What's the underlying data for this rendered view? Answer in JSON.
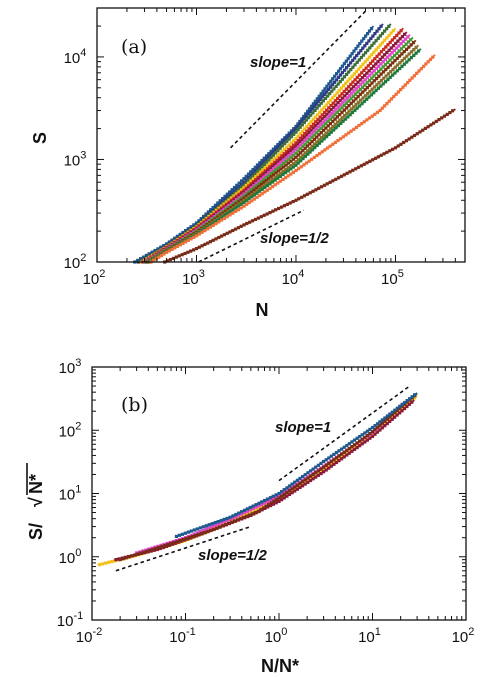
{
  "chart_data": [
    {
      "type": "line",
      "panel_label": "(a)",
      "xlabel": "N",
      "ylabel": "S",
      "x_scale": "log",
      "y_scale": "log",
      "xlim": [
        100,
        500000
      ],
      "ylim": [
        100,
        30000
      ],
      "x_ticks": [
        {
          "value": 100,
          "base": "10",
          "exp": "2"
        },
        {
          "value": 1000,
          "base": "10",
          "exp": "3"
        },
        {
          "value": 10000,
          "base": "10",
          "exp": "4"
        },
        {
          "value": 100000,
          "base": "10",
          "exp": "5"
        }
      ],
      "y_ticks": [
        {
          "value": 100,
          "base": "10",
          "exp": "2"
        },
        {
          "value": 1000,
          "base": "10",
          "exp": "3"
        },
        {
          "value": 10000,
          "base": "10",
          "exp": "4"
        }
      ],
      "reference_lines": [
        {
          "label": "slope=1",
          "x": [
            2200,
            50000
          ],
          "y": [
            1300,
            28000
          ]
        },
        {
          "label": "slope=1/2",
          "x": [
            1050,
            12000
          ],
          "y": [
            100,
            320
          ]
        }
      ],
      "series": [
        {
          "color": "#1f5a8f",
          "x": [
            240,
            500,
            1000,
            3000,
            10000,
            60000
          ],
          "y": [
            100,
            150,
            240,
            650,
            2100,
            20000
          ]
        },
        {
          "color": "#2e3a86",
          "x": [
            260,
            500,
            1000,
            3000,
            10000,
            75000
          ],
          "y": [
            100,
            145,
            230,
            600,
            2000,
            21000
          ]
        },
        {
          "color": "#3a6e3a",
          "x": [
            270,
            500,
            1000,
            3000,
            10000,
            90000
          ],
          "y": [
            100,
            142,
            225,
            560,
            1850,
            21000
          ]
        },
        {
          "color": "#f2c21b",
          "x": [
            280,
            500,
            1000,
            3000,
            10000,
            100000
          ],
          "y": [
            100,
            140,
            220,
            530,
            1600,
            19000
          ]
        },
        {
          "color": "#cc2a1f",
          "x": [
            290,
            500,
            1000,
            3000,
            10000,
            120000
          ],
          "y": [
            100,
            138,
            215,
            500,
            1450,
            19000
          ]
        },
        {
          "color": "#8a1a3a",
          "x": [
            300,
            500,
            1000,
            3000,
            10000,
            130000
          ],
          "y": [
            100,
            136,
            210,
            480,
            1350,
            17500
          ]
        },
        {
          "color": "#e048c8",
          "x": [
            300,
            500,
            1000,
            3000,
            10000,
            140000
          ],
          "y": [
            100,
            134,
            205,
            460,
            1250,
            16500
          ]
        },
        {
          "color": "#4a9a3a",
          "x": [
            310,
            500,
            1000,
            3000,
            10000,
            150000
          ],
          "y": [
            100,
            132,
            200,
            440,
            1150,
            15500
          ]
        },
        {
          "color": "#7a3010",
          "x": [
            320,
            500,
            1000,
            3000,
            10000,
            160000
          ],
          "y": [
            100,
            130,
            195,
            420,
            1050,
            14500
          ]
        },
        {
          "color": "#8a6e2a",
          "x": [
            330,
            500,
            1000,
            3000,
            10000,
            170000
          ],
          "y": [
            100,
            128,
            190,
            400,
            950,
            13000
          ]
        },
        {
          "color": "#1e7a3c",
          "x": [
            340,
            500,
            1000,
            3000,
            10000,
            180000
          ],
          "y": [
            100,
            126,
            185,
            380,
            880,
            12000
          ]
        },
        {
          "color": "#f0703a",
          "x": [
            350,
            500,
            1000,
            3000,
            10000,
            70000,
            250000
          ],
          "y": [
            100,
            124,
            180,
            350,
            780,
            3000,
            10500
          ]
        },
        {
          "color": "#7a2a18",
          "x": [
            480,
            1000,
            3000,
            10000,
            100000,
            400000
          ],
          "y": [
            100,
            135,
            230,
            400,
            1300,
            3100
          ]
        }
      ]
    },
    {
      "type": "line",
      "panel_label": "(b)",
      "xlabel": "N/N*",
      "ylabel_main": "S/",
      "ylabel_sqrt": "N*",
      "x_scale": "log",
      "y_scale": "log",
      "xlim": [
        0.01,
        100
      ],
      "ylim": [
        0.1,
        1000
      ],
      "x_ticks": [
        {
          "value": 0.01,
          "base": "10",
          "exp": "-2"
        },
        {
          "value": 0.1,
          "base": "10",
          "exp": "-1"
        },
        {
          "value": 1,
          "base": "10",
          "exp": "0"
        },
        {
          "value": 10,
          "base": "10",
          "exp": "1"
        },
        {
          "value": 100,
          "base": "10",
          "exp": "2"
        }
      ],
      "y_ticks": [
        {
          "value": 0.1,
          "base": "10",
          "exp": "-1"
        },
        {
          "value": 1,
          "base": "10",
          "exp": "0"
        },
        {
          "value": 10,
          "base": "10",
          "exp": "1"
        },
        {
          "value": 100,
          "base": "10",
          "exp": "2"
        },
        {
          "value": 1000,
          "base": "10",
          "exp": "3"
        }
      ],
      "reference_lines": [
        {
          "label": "slope=1",
          "x": [
            1.0,
            25
          ],
          "y": [
            16,
            500
          ]
        },
        {
          "label": "slope=1/2",
          "x": [
            0.018,
            0.5
          ],
          "y": [
            0.6,
            3.0
          ]
        }
      ],
      "series": [
        {
          "color": "#f2c21b",
          "x": [
            0.012,
            0.03,
            0.1,
            0.3,
            1,
            3,
            10,
            30
          ],
          "y": [
            0.75,
            1.05,
            1.8,
            3.5,
            8,
            24,
            85,
            350
          ]
        },
        {
          "color": "#8a1a3a",
          "x": [
            0.018,
            0.05,
            0.15,
            0.5,
            1,
            3,
            10,
            28
          ],
          "y": [
            0.9,
            1.3,
            2.3,
            4.5,
            7.5,
            22,
            80,
            300
          ]
        },
        {
          "color": "#e048c8",
          "x": [
            0.03,
            0.1,
            0.3,
            1,
            3,
            10,
            22
          ],
          "y": [
            1.15,
            2.0,
            3.9,
            9,
            27,
            92,
            280
          ]
        },
        {
          "color": "#7a2a18",
          "x": [
            0.02,
            0.06,
            0.2,
            0.6,
            1,
            3,
            10,
            30
          ],
          "y": [
            0.9,
            1.5,
            2.7,
            5.2,
            8.5,
            26,
            95,
            380
          ]
        },
        {
          "color": "#1f5a8f",
          "x": [
            0.08,
            0.3,
            1,
            3,
            10,
            30
          ],
          "y": [
            2.1,
            4.2,
            10,
            32,
            110,
            390
          ]
        }
      ]
    }
  ]
}
